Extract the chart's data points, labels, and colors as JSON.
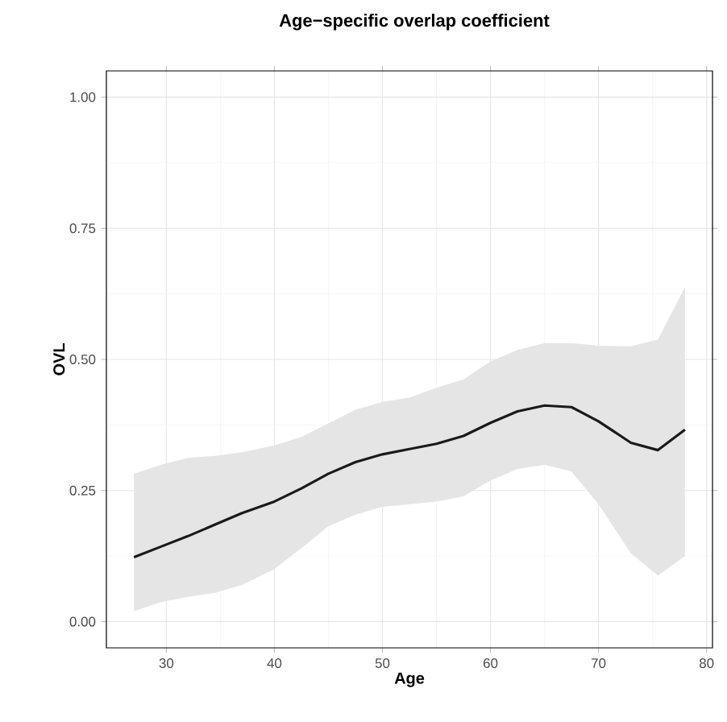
{
  "chart_data": {
    "type": "line",
    "title": "Age−specific overlap coefficient",
    "xlabel": "Age",
    "ylabel": "OVL",
    "x": [
      27,
      29.5,
      32,
      34.5,
      37,
      40,
      42.5,
      45,
      47.5,
      50,
      52.5,
      55,
      57.5,
      60,
      62.5,
      65,
      67.5,
      70,
      73,
      75.5,
      78
    ],
    "series": [
      {
        "color": "#1a1a1a",
        "values": [
          0.123,
          0.143,
          0.163,
          0.185,
          0.207,
          0.229,
          0.254,
          0.282,
          0.304,
          0.319,
          0.329,
          0.339,
          0.354,
          0.379,
          0.401,
          0.412,
          0.409,
          0.382,
          0.341,
          0.327,
          0.366
        ],
        "upper": [
          0.282,
          0.299,
          0.312,
          0.316,
          0.323,
          0.336,
          0.352,
          0.378,
          0.404,
          0.419,
          0.427,
          0.446,
          0.462,
          0.496,
          0.518,
          0.531,
          0.531,
          0.526,
          0.525,
          0.538,
          0.638
        ],
        "lower": [
          0.02,
          0.037,
          0.047,
          0.055,
          0.07,
          0.1,
          0.14,
          0.182,
          0.204,
          0.219,
          0.224,
          0.229,
          0.239,
          0.269,
          0.291,
          0.299,
          0.286,
          0.224,
          0.13,
          0.088,
          0.125
        ]
      }
    ],
    "xlim": [
      24.45,
      80.55
    ],
    "ylim": [
      -0.05,
      1.05
    ],
    "xticks": [
      30,
      40,
      50,
      60,
      70,
      80
    ],
    "yticks": [
      {
        "value": 0,
        "label": "0.00"
      },
      {
        "value": 0.25,
        "label": "0.25"
      },
      {
        "value": 0.5,
        "label": "0.50"
      },
      {
        "value": 0.75,
        "label": "0.75"
      },
      {
        "value": 1,
        "label": "1.00"
      }
    ],
    "grid": true,
    "line_style": "solid"
  }
}
